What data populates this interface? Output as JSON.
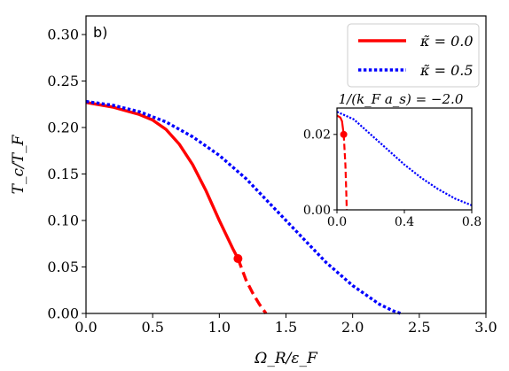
{
  "chart_data": [
    {
      "type": "line",
      "panel_label": "b)",
      "xlabel": "Ω_R/ε_F",
      "ylabel": "T_c/T_F",
      "xlim": [
        0.0,
        3.0
      ],
      "ylim": [
        0.0,
        0.32
      ],
      "xticks": [
        "0.0",
        "0.5",
        "1.0",
        "1.5",
        "2.0",
        "2.5",
        "3.0"
      ],
      "yticks": [
        "0.00",
        "0.05",
        "0.10",
        "0.15",
        "0.20",
        "0.25",
        "0.30"
      ],
      "legend_position": "top-right",
      "series": [
        {
          "name": "κ̃ = 0.0",
          "color": "#ff0000",
          "style": "solid",
          "x": [
            0.0,
            0.2,
            0.4,
            0.5,
            0.6,
            0.7,
            0.8,
            0.9,
            1.0,
            1.1,
            1.14
          ],
          "y": [
            0.227,
            0.222,
            0.214,
            0.208,
            0.198,
            0.182,
            0.16,
            0.132,
            0.1,
            0.07,
            0.059
          ]
        },
        {
          "name": "κ̃ = 0.0 (dashed)",
          "color": "#ff0000",
          "style": "dashed",
          "x": [
            1.14,
            1.2,
            1.25,
            1.3,
            1.35
          ],
          "y": [
            0.059,
            0.036,
            0.022,
            0.01,
            0.0
          ]
        },
        {
          "name": "κ̃ = 0.5",
          "color": "#0000ff",
          "style": "dotted",
          "x": [
            0.0,
            0.2,
            0.4,
            0.6,
            0.8,
            1.0,
            1.2,
            1.4,
            1.6,
            1.8,
            2.0,
            2.2,
            2.3,
            2.36
          ],
          "y": [
            0.228,
            0.224,
            0.217,
            0.206,
            0.19,
            0.17,
            0.145,
            0.115,
            0.085,
            0.055,
            0.03,
            0.01,
            0.003,
            0.0
          ]
        }
      ],
      "markers": [
        {
          "x": 1.14,
          "y": 0.059,
          "color": "#ff0000"
        }
      ],
      "legend": [
        {
          "label": "κ̃ = 0.0",
          "color": "#ff0000",
          "style": "solid"
        },
        {
          "label": "κ̃ = 0.5",
          "color": "#0000ff",
          "style": "dotted"
        }
      ]
    },
    {
      "type": "line",
      "title": "1/(k_F a_s) = −2.0",
      "xlim": [
        0.0,
        0.8
      ],
      "ylim": [
        0.0,
        0.027
      ],
      "xticks": [
        "0.0",
        "0.4",
        "0.8"
      ],
      "yticks": [
        "0.00",
        "0.02"
      ],
      "series": [
        {
          "name": "κ̃ = 0.0",
          "color": "#ff0000",
          "style": "solid",
          "x": [
            0.0,
            0.02,
            0.03,
            0.04
          ],
          "y": [
            0.025,
            0.0245,
            0.0235,
            0.02
          ]
        },
        {
          "name": "κ̃ = 0.0 (dashed)",
          "color": "#ff0000",
          "style": "dashed",
          "x": [
            0.04,
            0.05,
            0.055,
            0.058
          ],
          "y": [
            0.02,
            0.012,
            0.005,
            0.0
          ]
        },
        {
          "name": "κ̃ = 0.5",
          "color": "#0000ff",
          "style": "dotted",
          "x": [
            0.0,
            0.1,
            0.2,
            0.3,
            0.4,
            0.5,
            0.6,
            0.7,
            0.8
          ],
          "y": [
            0.026,
            0.024,
            0.02,
            0.016,
            0.012,
            0.0085,
            0.0055,
            0.003,
            0.0012
          ]
        }
      ],
      "markers": [
        {
          "x": 0.04,
          "y": 0.02,
          "color": "#ff0000"
        }
      ]
    }
  ]
}
